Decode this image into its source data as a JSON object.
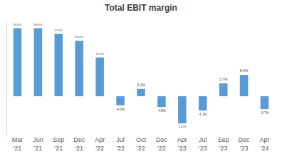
{
  "chart_data": {
    "type": "bar",
    "title": "Total EBIT margin",
    "categories": [
      "Mar '21",
      "Jun '21",
      "Sep '21",
      "Dec '21",
      "Apr '22",
      "Jul '22",
      "Oct '22",
      "Dec '22",
      "Apr '23",
      "Jul '23",
      "Sep '23",
      "Dec '23",
      "Apr '24"
    ],
    "values": [
      30.0,
      30.0,
      27.5,
      24.4,
      17.1,
      -4.0,
      3.2,
      -4.8,
      -12.0,
      -6.3,
      5.7,
      9.4,
      -5.7
    ],
    "value_labels": [
      "30.0%",
      "30.0%",
      "27.5%",
      "24.4%",
      "17.1%",
      "-4.0%",
      "3.2%",
      "-4.8%",
      "-12.0%",
      "-6.3%",
      "5.7%",
      "9.4%",
      "-5.7%"
    ],
    "color": "#5b9bd5",
    "ylim": [
      -17,
      33
    ],
    "yticks": [],
    "grid": false,
    "data_labels": true,
    "tick_labels": "x"
  }
}
